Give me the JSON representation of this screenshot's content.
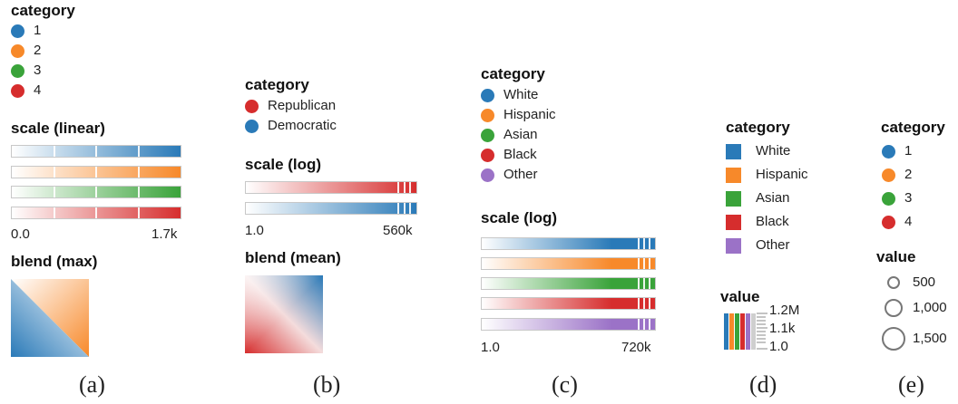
{
  "colors": {
    "blue": "#2a7ab8",
    "orange": "#f7892a",
    "green": "#3aa33a",
    "red": "#d62d2d",
    "purple": "#9b72c7",
    "rep_red": "#d62d2d",
    "dem_blue": "#2a7ab8"
  },
  "panel_a": {
    "legend_title": "category",
    "categories": [
      "1",
      "2",
      "3",
      "4"
    ],
    "scale_title": "scale (linear)",
    "scale_min": "0.0",
    "scale_max": "1.7k",
    "blend_title": "blend (max)",
    "caption": "(a)"
  },
  "panel_b": {
    "legend_title": "category",
    "categories": [
      "Republican",
      "Democratic"
    ],
    "scale_title": "scale (log)",
    "scale_min": "1.0",
    "scale_max": "560k",
    "blend_title": "blend (mean)",
    "caption": "(b)"
  },
  "panel_c": {
    "legend_title": "category",
    "categories": [
      "White",
      "Hispanic",
      "Asian",
      "Black",
      "Other"
    ],
    "scale_title": "scale (log)",
    "scale_min": "1.0",
    "scale_max": "720k",
    "caption": "(c)"
  },
  "panel_d": {
    "legend_title": "category",
    "categories": [
      "White",
      "Hispanic",
      "Asian",
      "Black",
      "Other"
    ],
    "value_title": "value",
    "value_labels": [
      "1.2M",
      "1.1k",
      "1.0"
    ],
    "caption": "(d)"
  },
  "panel_e": {
    "legend_title": "category",
    "categories": [
      "1",
      "2",
      "3",
      "4"
    ],
    "value_title": "value",
    "size_labels": [
      "500",
      "1,000",
      "1,500"
    ],
    "caption": "(e)"
  }
}
